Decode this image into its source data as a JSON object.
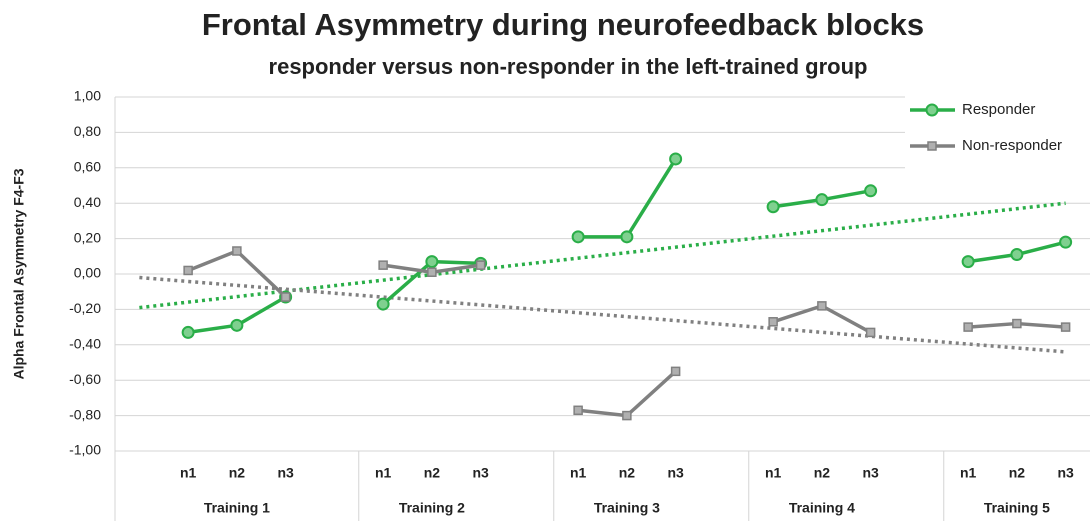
{
  "chart_data": {
    "type": "line",
    "title": "Frontal Asymmetry during neurofeedback blocks",
    "subtitle": "responder versus non-responder in the left-trained group",
    "y_label": "Alpha Frontal Asymmetry F4-F3",
    "categories": [
      null,
      "n1",
      "n2",
      "n3",
      null,
      "n1",
      "n2",
      "n3",
      null,
      "n1",
      "n2",
      "n3",
      null,
      "n1",
      "n2",
      "n3",
      null,
      "n1",
      "n2",
      "n3"
    ],
    "groups": [
      "Training 1",
      "Training 2",
      "Training 3",
      "Training 4",
      "Training 5"
    ],
    "series": [
      {
        "name": "Responder",
        "color": "#2aae48",
        "marker": "circle",
        "values": [
          null,
          -0.33,
          -0.29,
          -0.13,
          null,
          -0.17,
          0.07,
          0.06,
          null,
          0.21,
          0.21,
          0.65,
          null,
          0.38,
          0.42,
          0.47,
          null,
          0.07,
          0.11,
          0.18
        ],
        "trend": [
          -0.19,
          0.4
        ]
      },
      {
        "name": "Non-responder",
        "color": "#808080",
        "marker": "square",
        "values": [
          null,
          0.02,
          0.13,
          -0.13,
          null,
          0.05,
          0.01,
          0.05,
          null,
          -0.77,
          -0.8,
          -0.55,
          null,
          -0.27,
          -0.18,
          -0.33,
          null,
          -0.3,
          -0.28,
          -0.3
        ],
        "trend": [
          -0.02,
          -0.44
        ]
      }
    ],
    "ylim": [
      -1,
      1
    ],
    "yticks": [
      {
        "value": -1,
        "label": "-1,00"
      },
      {
        "value": -0.8,
        "label": "-0,80"
      },
      {
        "value": -0.6,
        "label": "-0,60"
      },
      {
        "value": -0.4,
        "label": "-0,40"
      },
      {
        "value": -0.2,
        "label": "-0,20"
      },
      {
        "value": 0,
        "label": "0,00"
      },
      {
        "value": 0.2,
        "label": "0,20"
      },
      {
        "value": 0.4,
        "label": "0,40"
      },
      {
        "value": 0.6,
        "label": "0,60"
      },
      {
        "value": 0.8,
        "label": "0,80"
      },
      {
        "value": 1,
        "label": "1,00"
      }
    ],
    "grid": true,
    "legend": "top-right"
  }
}
